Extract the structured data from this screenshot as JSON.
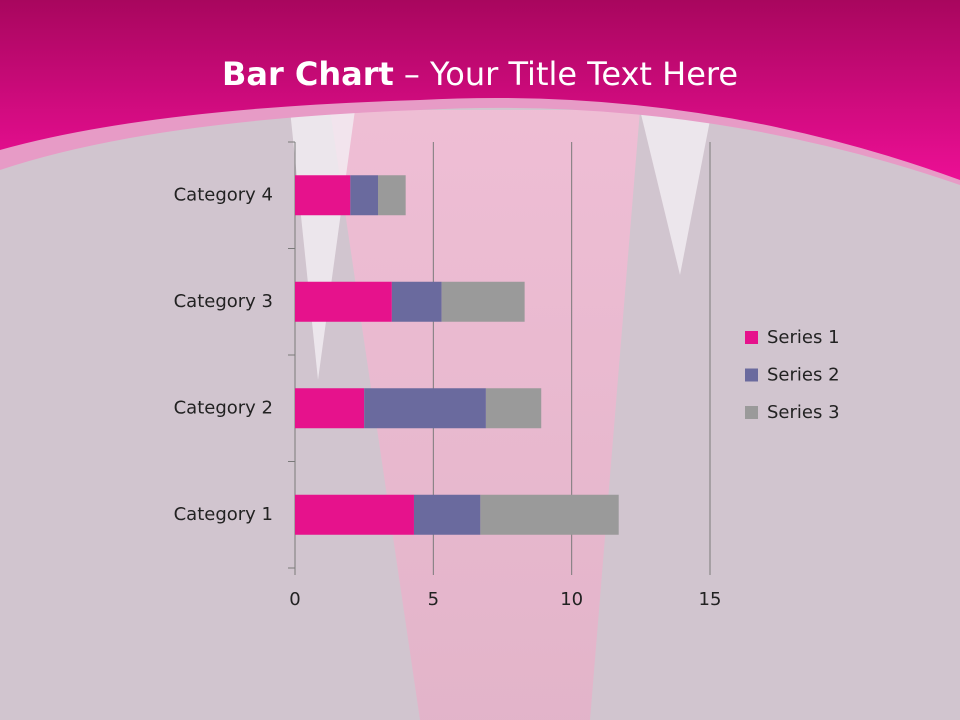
{
  "chart_data": {
    "type": "stacked-bar-horizontal",
    "title": [
      "Bar Chart",
      "– Your Title Text Here"
    ],
    "categories": [
      "Category 1",
      "Category 2",
      "Category 3",
      "Category 4"
    ],
    "series": [
      {
        "name": "Series 1",
        "color": "#e6128c",
        "values": [
          4.3,
          2.5,
          3.5,
          2
        ]
      },
      {
        "name": "Series 2",
        "color": "#6a6a9e",
        "values": [
          2.4,
          4.4,
          1.8,
          1
        ]
      },
      {
        "name": "Series 3",
        "color": "#9a9a9a",
        "values": [
          5,
          2,
          3,
          1
        ]
      }
    ],
    "xlim": [
      0,
      15
    ],
    "xticks": [
      0,
      5,
      10,
      15
    ],
    "grid": true,
    "legend": "right"
  }
}
